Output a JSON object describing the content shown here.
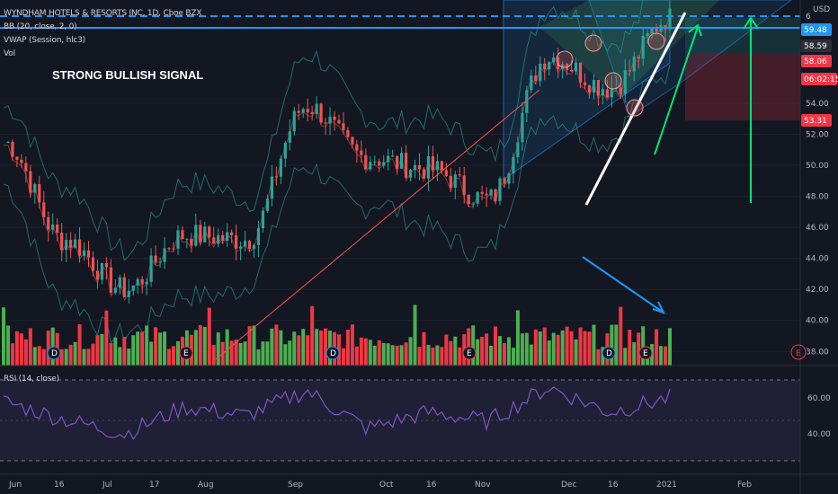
{
  "legend": {
    "symbol_line": "WYNDHAM HOTELS & RESORTS INC, 1D, Cboe BZX",
    "bb": "BB (20, close, 2, 0)",
    "vwap": "VWAP (Session, hlc3)",
    "vol": "Vol",
    "rsi": "RSI (14, close)"
  },
  "annotation_text": "STRONG BULLISH SIGNAL",
  "price_axis": {
    "currency": "USD",
    "top_label": "6",
    "ticks": [
      "54.00",
      "52.00",
      "50.00",
      "48.00",
      "46.00",
      "44.00",
      "42.00",
      "40.00",
      "38.00"
    ],
    "badges": [
      {
        "value": "59.48",
        "color": "#2196f3"
      },
      {
        "value": "58.59",
        "color": "#2a2e39"
      },
      {
        "value": "58.06",
        "color": "#f23645"
      },
      {
        "value": "06:02:15",
        "color": "#f23645"
      },
      {
        "value": "53.31",
        "color": "#f23645"
      }
    ]
  },
  "rsi_axis": {
    "ticks": [
      "60.00",
      "40.00"
    ]
  },
  "time_axis": {
    "labels": [
      "Jun",
      "16",
      "Jul",
      "17",
      "Aug",
      "Sep",
      "Oct",
      "16",
      "Nov",
      "Dec",
      "16",
      "2021",
      "Feb"
    ]
  },
  "colors": {
    "up": "#26a69a",
    "down": "#ef5350",
    "accent": "#2196f3",
    "vol_up": "#4caf50",
    "vol_down": "#f23645",
    "rsi": "#7e57c2",
    "green_arrow": "#00e676"
  },
  "event_markers": [
    "D",
    "E",
    "D",
    "E",
    "D",
    "E"
  ],
  "chart_data": {
    "type": "line",
    "ylim": [
      37,
      61
    ],
    "x": [
      "Jun",
      "16",
      "Jul",
      "17",
      "Aug",
      "Sep",
      "Oct",
      "16",
      "Nov",
      "Dec",
      "16",
      "2021"
    ],
    "series": [
      {
        "values": [
          51.5,
          45.2,
          42.0,
          45.5,
          45.2,
          53.8,
          50.5,
          49.8,
          47.8,
          57.0,
          55.0,
          59.5
        ]
      }
    ],
    "rsi_ylim": [
      30,
      75
    ],
    "rsi_series": [
      {
        "values": [
          58,
          48,
          40,
          55,
          50,
          64,
          43,
          52,
          47,
          66,
          52,
          60
        ]
      }
    ]
  }
}
